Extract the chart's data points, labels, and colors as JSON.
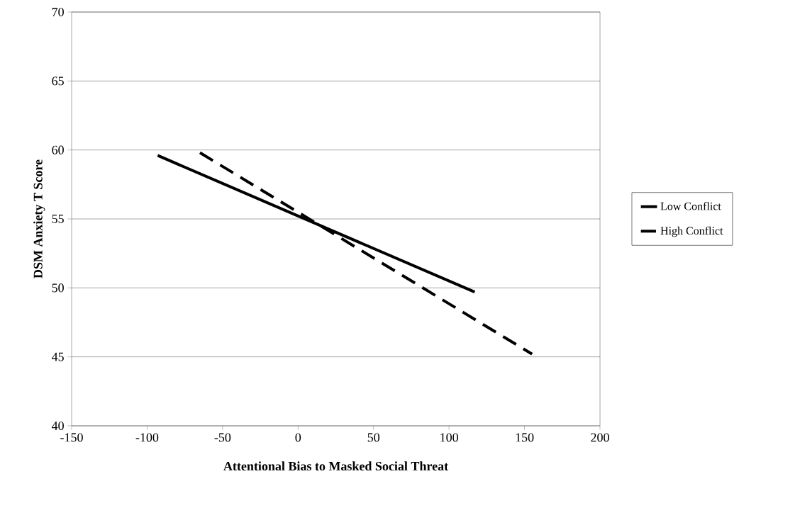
{
  "chart_data": {
    "type": "line",
    "xlabel": "Attentional Bias to Masked Social Threat",
    "ylabel": "DSM Anxiety T Score",
    "xlim": [
      -150,
      200
    ],
    "xticks": [
      -150,
      -100,
      -50,
      0,
      50,
      100,
      150,
      200
    ],
    "ylim": [
      40,
      70
    ],
    "yticks": [
      40,
      45,
      50,
      55,
      60,
      65,
      70
    ],
    "grid": "y",
    "legend": "right",
    "marker": "none",
    "series": [
      {
        "name": "Low Conflict",
        "color": "#000000",
        "line_style": "solid",
        "x": [
          -93,
          117
        ],
        "values": [
          59.6,
          49.7
        ]
      },
      {
        "name": "High Conflict",
        "color": "#000000",
        "line_style": "dashed",
        "x": [
          -65,
          155
        ],
        "values": [
          59.8,
          45.2
        ]
      }
    ]
  }
}
